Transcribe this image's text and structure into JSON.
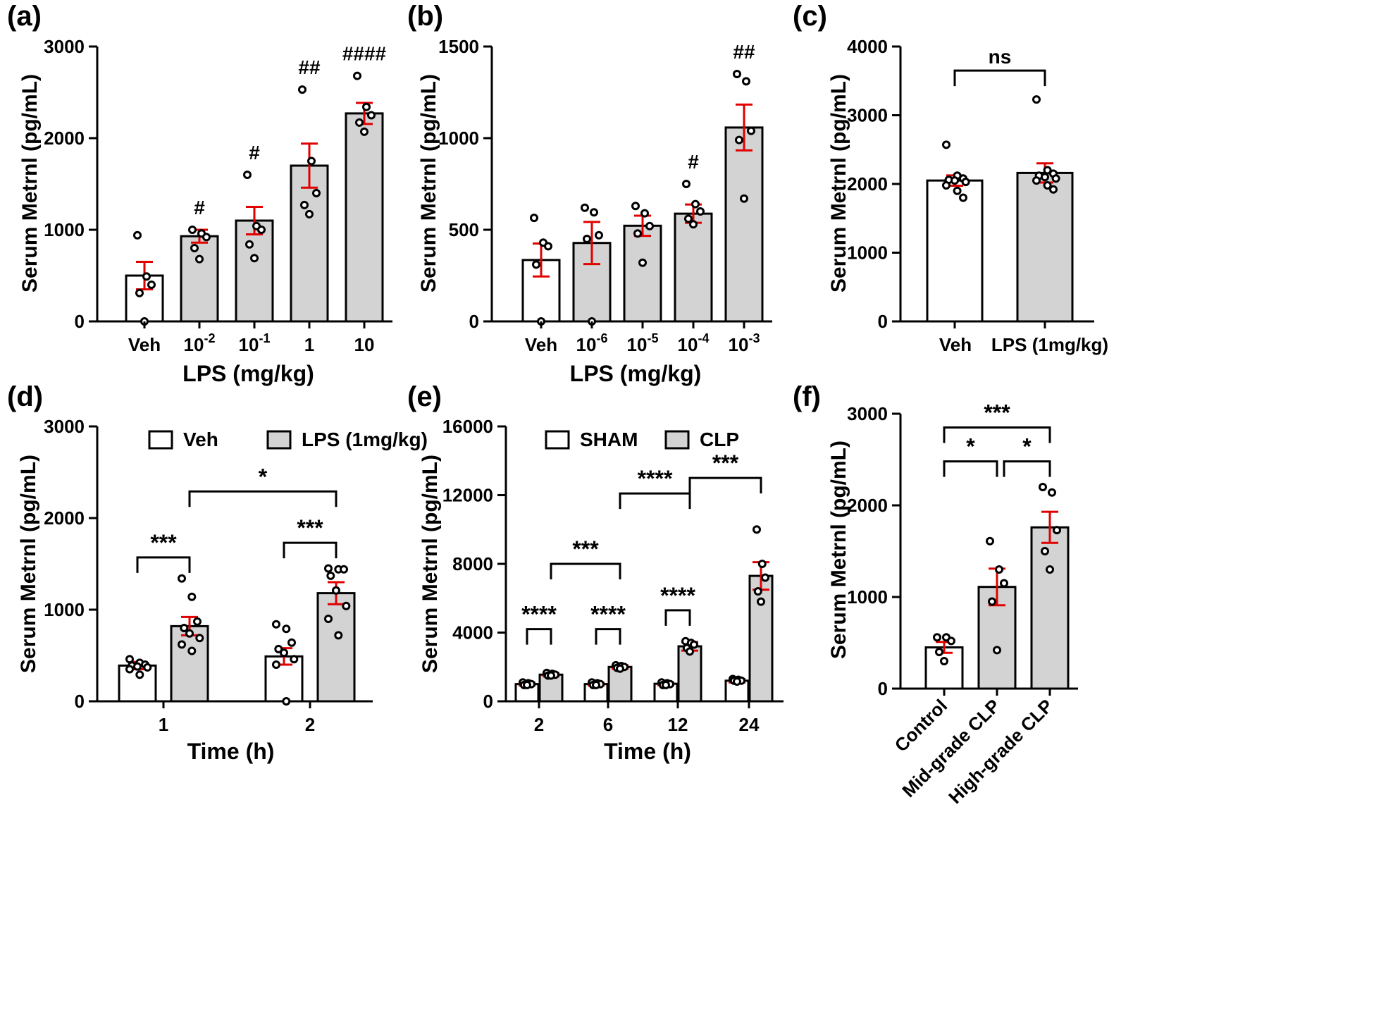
{
  "chart_data": [
    {
      "panel": "(a)",
      "type": "bar",
      "ylabel": "Serum Metrnl (pg/mL)",
      "xlabel": "LPS (mg/kg)",
      "ylim": [
        0,
        3000
      ],
      "yticks": [
        "0",
        "1000",
        "2000",
        "3000"
      ],
      "categories": [
        {
          "label": "Veh",
          "base": "Veh",
          "sup": ""
        },
        {
          "label": "10-2",
          "base": "10",
          "sup": "-2"
        },
        {
          "label": "10-1",
          "base": "10",
          "sup": "-1"
        },
        {
          "label": "1",
          "base": "1",
          "sup": ""
        },
        {
          "label": "10",
          "base": "10",
          "sup": ""
        }
      ],
      "series": [
        {
          "values": [
            500,
            930,
            1100,
            1700,
            2270
          ],
          "sem": [
            150,
            70,
            150,
            240,
            115
          ],
          "fill": "mixed"
        }
      ],
      "bar_fills": [
        "white",
        "grey",
        "grey",
        "grey",
        "grey"
      ],
      "points": [
        [
          940,
          490,
          400,
          310,
          0
        ],
        [
          1000,
          960,
          920,
          800,
          680
        ],
        [
          1600,
          1040,
          1000,
          840,
          690
        ],
        [
          2530,
          1750,
          1400,
          1270,
          1170
        ],
        [
          2680,
          2340,
          2250,
          2170,
          2070
        ]
      ],
      "annotations": [
        "",
        "#",
        "#",
        "##",
        "####"
      ]
    },
    {
      "panel": "(b)",
      "type": "bar",
      "ylabel": "Serum Metrnl (pg/mL)",
      "xlabel": "LPS (mg/kg)",
      "ylim": [
        0,
        1500
      ],
      "yticks": [
        "0",
        "500",
        "1000",
        "1500"
      ],
      "categories": [
        {
          "label": "Veh",
          "base": "Veh",
          "sup": ""
        },
        {
          "label": "10-6",
          "base": "10",
          "sup": "-6"
        },
        {
          "label": "10-5",
          "base": "10",
          "sup": "-5"
        },
        {
          "label": "10-4",
          "base": "10",
          "sup": "-4"
        },
        {
          "label": "10-3",
          "base": "10",
          "sup": "-3"
        }
      ],
      "series": [
        {
          "values": [
            335,
            428,
            522,
            588,
            1058
          ],
          "sem": [
            90,
            115,
            55,
            50,
            125
          ]
        }
      ],
      "bar_fills": [
        "white",
        "grey",
        "grey",
        "grey",
        "grey"
      ],
      "points": [
        [
          565,
          430,
          410,
          310,
          0
        ],
        [
          620,
          595,
          470,
          450,
          0
        ],
        [
          630,
          590,
          520,
          480,
          320
        ],
        [
          750,
          640,
          600,
          560,
          530
        ],
        [
          1350,
          1310,
          1040,
          990,
          670
        ]
      ],
      "annotations": [
        "",
        "",
        "",
        "#",
        "##"
      ]
    },
    {
      "panel": "(c)",
      "type": "bar",
      "ylabel": "Serum Metrnl (pg/mL)",
      "xlabel": "",
      "ylim": [
        0,
        4000
      ],
      "yticks": [
        "0",
        "1000",
        "2000",
        "3000",
        "4000"
      ],
      "categories": [
        {
          "label": "Veh",
          "base": "Veh",
          "sup": ""
        },
        {
          "label": "LPS (1mg/kg)",
          "base": "LPS (1mg/kg)",
          "sup": ""
        }
      ],
      "series": [
        {
          "values": [
            2050,
            2160
          ],
          "sem": [
            75,
            140
          ]
        }
      ],
      "bar_fills": [
        "white",
        "grey"
      ],
      "points": [
        [
          2570,
          2120,
          2080,
          2060,
          2050,
          2030,
          1980,
          1900,
          1800
        ],
        [
          3230,
          2200,
          2150,
          2120,
          2100,
          2080,
          2050,
          1980,
          1920
        ]
      ],
      "brackets": [
        {
          "from": 0,
          "to": 1,
          "y": 3650,
          "label": "ns"
        }
      ]
    },
    {
      "panel": "(d)",
      "type": "bar",
      "ylabel": "Serum Metrnl (pg/mL)",
      "xlabel": "Time (h)",
      "ylim": [
        0,
        3000
      ],
      "yticks": [
        "0",
        "1000",
        "2000",
        "3000"
      ],
      "x": [
        "1",
        "2"
      ],
      "series": [
        {
          "name": "Veh",
          "values": [
            390,
            490
          ],
          "sem": [
            40,
            90
          ]
        },
        {
          "name": "LPS (1mg/kg)",
          "values": [
            820,
            1180
          ],
          "sem": [
            100,
            120
          ]
        }
      ],
      "points": [
        [
          [
            460,
            420,
            400,
            390,
            380,
            370,
            350,
            290
          ],
          [
            840,
            790,
            640,
            570,
            530,
            460,
            400,
            0
          ]
        ],
        [
          [
            1340,
            1140,
            870,
            800,
            740,
            690,
            620,
            550
          ],
          [
            1450,
            1440,
            1440,
            1370,
            1210,
            1040,
            900,
            720
          ]
        ]
      ],
      "legend": "top",
      "brackets": [
        {
          "label": "***",
          "y": 1570
        },
        {
          "label": "***",
          "y": 1730
        },
        {
          "label": "*",
          "y": 2290
        }
      ]
    },
    {
      "panel": "(e)",
      "type": "bar",
      "ylabel": "Serum Metrnl (pg/mL)",
      "xlabel": "Time (h)",
      "ylim": [
        0,
        16000
      ],
      "yticks": [
        "0",
        "4000",
        "8000",
        "12000",
        "16000"
      ],
      "x": [
        "2",
        "6",
        "12",
        "24"
      ],
      "series": [
        {
          "name": "SHAM",
          "values": [
            1000,
            1000,
            1020,
            1200
          ],
          "sem": [
            80,
            80,
            80,
            100
          ]
        },
        {
          "name": "CLP",
          "values": [
            1550,
            2000,
            3200,
            7300
          ],
          "sem": [
            100,
            100,
            250,
            800
          ]
        }
      ],
      "points": [
        [
          [
            1100,
            1050,
            1000,
            950,
            950
          ],
          [
            1100,
            1050,
            1000,
            950,
            950
          ],
          [
            1100,
            1050,
            1000,
            950,
            950
          ],
          [
            1300,
            1250,
            1200,
            1200,
            1150
          ]
        ],
        [
          [
            1650,
            1600,
            1550,
            1500,
            1500
          ],
          [
            2100,
            2050,
            2000,
            1950,
            1900
          ],
          [
            3500,
            3400,
            3300,
            3100,
            2900
          ],
          [
            10000,
            8000,
            7200,
            6400,
            5800
          ]
        ]
      ],
      "legend": "top",
      "brackets": [
        {
          "label": "****",
          "y": 4200
        },
        {
          "label": "****",
          "y": 4200
        },
        {
          "label": "****",
          "y": 5300
        },
        {
          "label": "***",
          "y": 8000
        },
        {
          "label": "****",
          "y": 12100
        },
        {
          "label": "***",
          "y": 13000
        }
      ]
    },
    {
      "panel": "(f)",
      "type": "bar",
      "ylabel": "Serum Metrnl (pg/mL)",
      "xlabel": "",
      "ylim": [
        0,
        3000
      ],
      "yticks": [
        "0",
        "1000",
        "2000",
        "3000"
      ],
      "categories": [
        {
          "label": "Control",
          "base": "Control",
          "sup": ""
        },
        {
          "label": "Mid-grade CLP",
          "base": "Mid-grade CLP",
          "sup": ""
        },
        {
          "label": "High-grade CLP",
          "base": "High-grade CLP",
          "sup": ""
        }
      ],
      "series": [
        {
          "values": [
            450,
            1110,
            1760
          ],
          "sem": [
            60,
            200,
            170
          ]
        }
      ],
      "bar_fills": [
        "white",
        "grey",
        "grey"
      ],
      "points": [
        [
          560,
          560,
          520,
          400,
          300
        ],
        [
          1610,
          1300,
          1150,
          950,
          420
        ],
        [
          2200,
          2140,
          1730,
          1500,
          1300
        ]
      ],
      "brackets": [
        {
          "from": 0,
          "to": 1,
          "y": 2480,
          "label": "*"
        },
        {
          "from": 1,
          "to": 2,
          "y": 2480,
          "label": "*"
        },
        {
          "from": 0,
          "to": 2,
          "y": 2850,
          "label": "***"
        }
      ]
    }
  ],
  "panel_labels": [
    "(a)",
    "(b)",
    "(c)",
    "(d)",
    "(e)",
    "(f)"
  ],
  "colors": {
    "error_bar": "#e00000",
    "grey_bar": "#d3d3d3",
    "white_bar": "#ffffff",
    "axis": "#000000"
  }
}
